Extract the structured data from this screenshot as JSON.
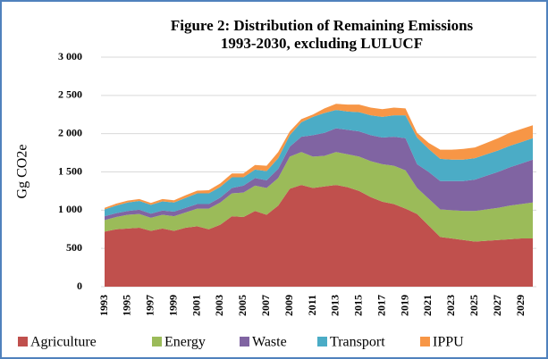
{
  "chart_data": {
    "type": "stacked_area",
    "title": [
      "Figure 2: Distribution of Remaining Emissions",
      "1993-2030, excluding LULUCF"
    ],
    "y_label": "Gg CO2e",
    "categories": [
      "1993",
      null,
      "1995",
      null,
      "1997",
      null,
      "1999",
      null,
      "2001",
      null,
      "2003",
      null,
      "2005",
      null,
      "2007",
      null,
      "2009",
      null,
      "2011",
      null,
      "2013",
      null,
      "2015",
      null,
      "2017",
      null,
      "2019",
      null,
      "2021",
      null,
      "2023",
      null,
      "2025",
      null,
      "2027",
      null,
      "2029",
      null
    ],
    "series": [
      {
        "name": "Agriculture",
        "color": "#c0504d",
        "values": [
          720,
          750,
          760,
          770,
          730,
          760,
          730,
          770,
          790,
          750,
          810,
          920,
          910,
          990,
          940,
          1060,
          1280,
          1330,
          1290,
          1310,
          1330,
          1300,
          1250,
          1170,
          1110,
          1080,
          1020,
          950,
          800,
          650,
          630,
          610,
          590,
          600,
          610,
          620,
          630,
          630
        ]
      },
      {
        "name": "Energy",
        "color": "#9bbb59",
        "values": [
          150,
          160,
          180,
          180,
          170,
          180,
          190,
          200,
          230,
          270,
          290,
          300,
          320,
          330,
          350,
          360,
          420,
          430,
          410,
          400,
          430,
          430,
          450,
          470,
          490,
          500,
          500,
          340,
          350,
          360,
          370,
          380,
          400,
          410,
          420,
          440,
          450,
          470
        ]
      },
      {
        "name": "Waste",
        "color": "#8064a2",
        "values": [
          50,
          50,
          50,
          55,
          55,
          55,
          60,
          60,
          60,
          60,
          65,
          70,
          90,
          100,
          100,
          120,
          130,
          200,
          280,
          300,
          310,
          320,
          330,
          340,
          350,
          380,
          420,
          310,
          350,
          370,
          380,
          390,
          410,
          440,
          470,
          500,
          530,
          560
        ]
      },
      {
        "name": "Transport",
        "color": "#4bacc6",
        "values": [
          90,
          100,
          110,
          115,
          115,
          120,
          120,
          130,
          140,
          140,
          140,
          140,
          110,
          110,
          120,
          140,
          150,
          190,
          240,
          260,
          240,
          240,
          250,
          260,
          270,
          280,
          300,
          350,
          300,
          290,
          280,
          280,
          280,
          280,
          280,
          280,
          280,
          280
        ]
      },
      {
        "name": "IPPU",
        "color": "#f79646",
        "values": [
          20,
          25,
          25,
          25,
          25,
          30,
          30,
          35,
          35,
          40,
          45,
          50,
          50,
          60,
          70,
          80,
          50,
          40,
          30,
          60,
          80,
          90,
          100,
          100,
          100,
          100,
          90,
          60,
          80,
          120,
          130,
          140,
          140,
          150,
          160,
          170,
          170,
          170
        ]
      }
    ],
    "ylim": [
      0,
      3000
    ],
    "yticks": [
      0,
      500,
      {
        "value": 1000,
        "label": "1 000"
      },
      {
        "value": 1500,
        "label": "1 500"
      },
      {
        "value": 2000,
        "label": "2 000"
      },
      {
        "value": 2500,
        "label": "2 500"
      },
      {
        "value": 3000,
        "label": "3 000"
      }
    ],
    "grid": true
  }
}
